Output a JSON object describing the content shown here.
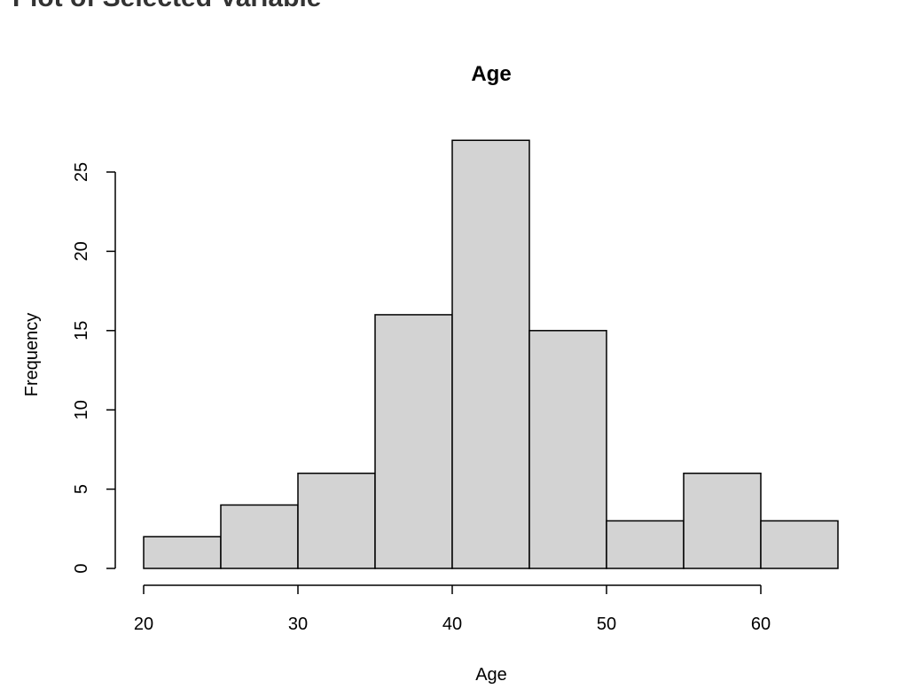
{
  "page": {
    "heading": "Plot of Selected Variable"
  },
  "chart_data": {
    "type": "bar",
    "title": "Age",
    "xlabel": "Age",
    "ylabel": "Frequency",
    "bins": [
      {
        "x0": 20,
        "x1": 25,
        "count": 2
      },
      {
        "x0": 25,
        "x1": 30,
        "count": 4
      },
      {
        "x0": 30,
        "x1": 35,
        "count": 6
      },
      {
        "x0": 35,
        "x1": 40,
        "count": 16
      },
      {
        "x0": 40,
        "x1": 45,
        "count": 27
      },
      {
        "x0": 45,
        "x1": 50,
        "count": 15
      },
      {
        "x0": 50,
        "x1": 55,
        "count": 3
      },
      {
        "x0": 55,
        "x1": 60,
        "count": 6
      },
      {
        "x0": 60,
        "x1": 65,
        "count": 3
      }
    ],
    "xticks": [
      20,
      30,
      40,
      50,
      60
    ],
    "yticks": [
      0,
      5,
      10,
      15,
      20,
      25
    ],
    "bar_color": "#d3d3d3",
    "grid": false
  }
}
